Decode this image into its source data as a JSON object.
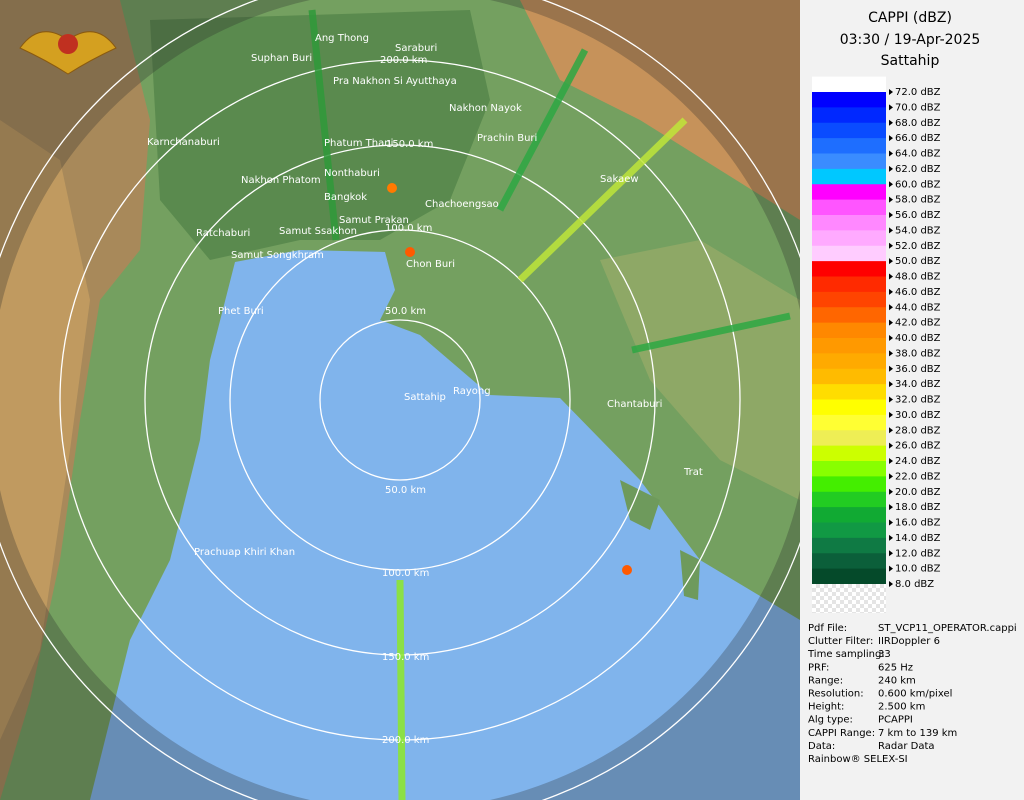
{
  "header": {
    "title": "CAPPI (dBZ)",
    "time": "03:30 / 19-Apr-2025",
    "site": "Sattahip"
  },
  "legend": [
    {
      "label": "72.0 dBZ",
      "color": "#ffffff"
    },
    {
      "label": "70.0 dBZ",
      "color": "#0000ff"
    },
    {
      "label": "68.0 dBZ",
      "color": "#0028ff"
    },
    {
      "label": "66.0 dBZ",
      "color": "#0a4cff"
    },
    {
      "label": "64.0 dBZ",
      "color": "#1e6eff"
    },
    {
      "label": "62.0 dBZ",
      "color": "#3a8cff"
    },
    {
      "label": "60.0 dBZ",
      "color": "#00c8ff"
    },
    {
      "label": "58.0 dBZ",
      "color": "#ff00ff"
    },
    {
      "label": "56.0 dBZ",
      "color": "#ff55ff"
    },
    {
      "label": "54.0 dBZ",
      "color": "#ff88ff"
    },
    {
      "label": "52.0 dBZ",
      "color": "#ffaaff"
    },
    {
      "label": "50.0 dBZ",
      "color": "#ffccff"
    },
    {
      "label": "48.0 dBZ",
      "color": "#ff0000"
    },
    {
      "label": "46.0 dBZ",
      "color": "#ff2a00"
    },
    {
      "label": "44.0 dBZ",
      "color": "#ff4400"
    },
    {
      "label": "42.0 dBZ",
      "color": "#ff6600"
    },
    {
      "label": "40.0 dBZ",
      "color": "#ff8800"
    },
    {
      "label": "38.0 dBZ",
      "color": "#ff9900"
    },
    {
      "label": "36.0 dBZ",
      "color": "#ffaa00"
    },
    {
      "label": "34.0 dBZ",
      "color": "#ffbb00"
    },
    {
      "label": "32.0 dBZ",
      "color": "#ffdd00"
    },
    {
      "label": "30.0 dBZ",
      "color": "#ffff00"
    },
    {
      "label": "28.0 dBZ",
      "color": "#ffff33"
    },
    {
      "label": "26.0 dBZ",
      "color": "#eeee55"
    },
    {
      "label": "24.0 dBZ",
      "color": "#ccff00"
    },
    {
      "label": "22.0 dBZ",
      "color": "#88ff00"
    },
    {
      "label": "20.0 dBZ",
      "color": "#44ee00"
    },
    {
      "label": "18.0 dBZ",
      "color": "#22cc22"
    },
    {
      "label": "16.0 dBZ",
      "color": "#11aa33"
    },
    {
      "label": "14.0 dBZ",
      "color": "#119944"
    },
    {
      "label": "12.0 dBZ",
      "color": "#0f7a44"
    },
    {
      "label": "10.0 dBZ",
      "color": "#0b5f3a"
    },
    {
      "label": "8.0 dBZ",
      "color": "#054a2a"
    }
  ],
  "info": [
    {
      "label": "Pdf File:",
      "value": "ST_VCP11_OPERATOR.cappi"
    },
    {
      "label": "Clutter Filter:",
      "value": "IIRDoppler 6"
    },
    {
      "label": "Time sampling:",
      "value": "33"
    },
    {
      "label": "PRF:",
      "value": "625 Hz"
    },
    {
      "label": "Range:",
      "value": "240 km"
    },
    {
      "label": "Resolution:",
      "value": "0.600 km/pixel"
    },
    {
      "label": "Height:",
      "value": "2.500 km"
    },
    {
      "label": "Alg type:",
      "value": "PCAPPI"
    },
    {
      "label": "CAPPI Range:",
      "value": "7 km to 139 km"
    },
    {
      "label": "Data:",
      "value": "Radar Data"
    }
  ],
  "footer": "Rainbow® SELEX-SI",
  "cities": [
    "Ang Thong",
    "Saraburi",
    "Suphan Buri",
    "Pra Nakhon Si Ayutthaya",
    "Nakhon Nayok",
    "Prachin Buri",
    "Karnchanaburi",
    "Phatum Thani",
    "Nonthaburi",
    "Nakhon Phatom",
    "Sakaew",
    "Bangkok",
    "Chachoengsao",
    "Samut Prakan",
    "Ratchaburi",
    "Samut Ssakhon",
    "Samut Songkhram",
    "Chon Buri",
    "Phet Buri",
    "Rayong",
    "Sattahip",
    "Chantaburi",
    "Trat",
    "Prachuap Khiri Khan"
  ],
  "rings": [
    "200.0 km",
    "150.0 km",
    "100.0 km",
    "50.0 km",
    "50.0 km",
    "100.0 km",
    "150.0 km",
    "200.0 km"
  ]
}
